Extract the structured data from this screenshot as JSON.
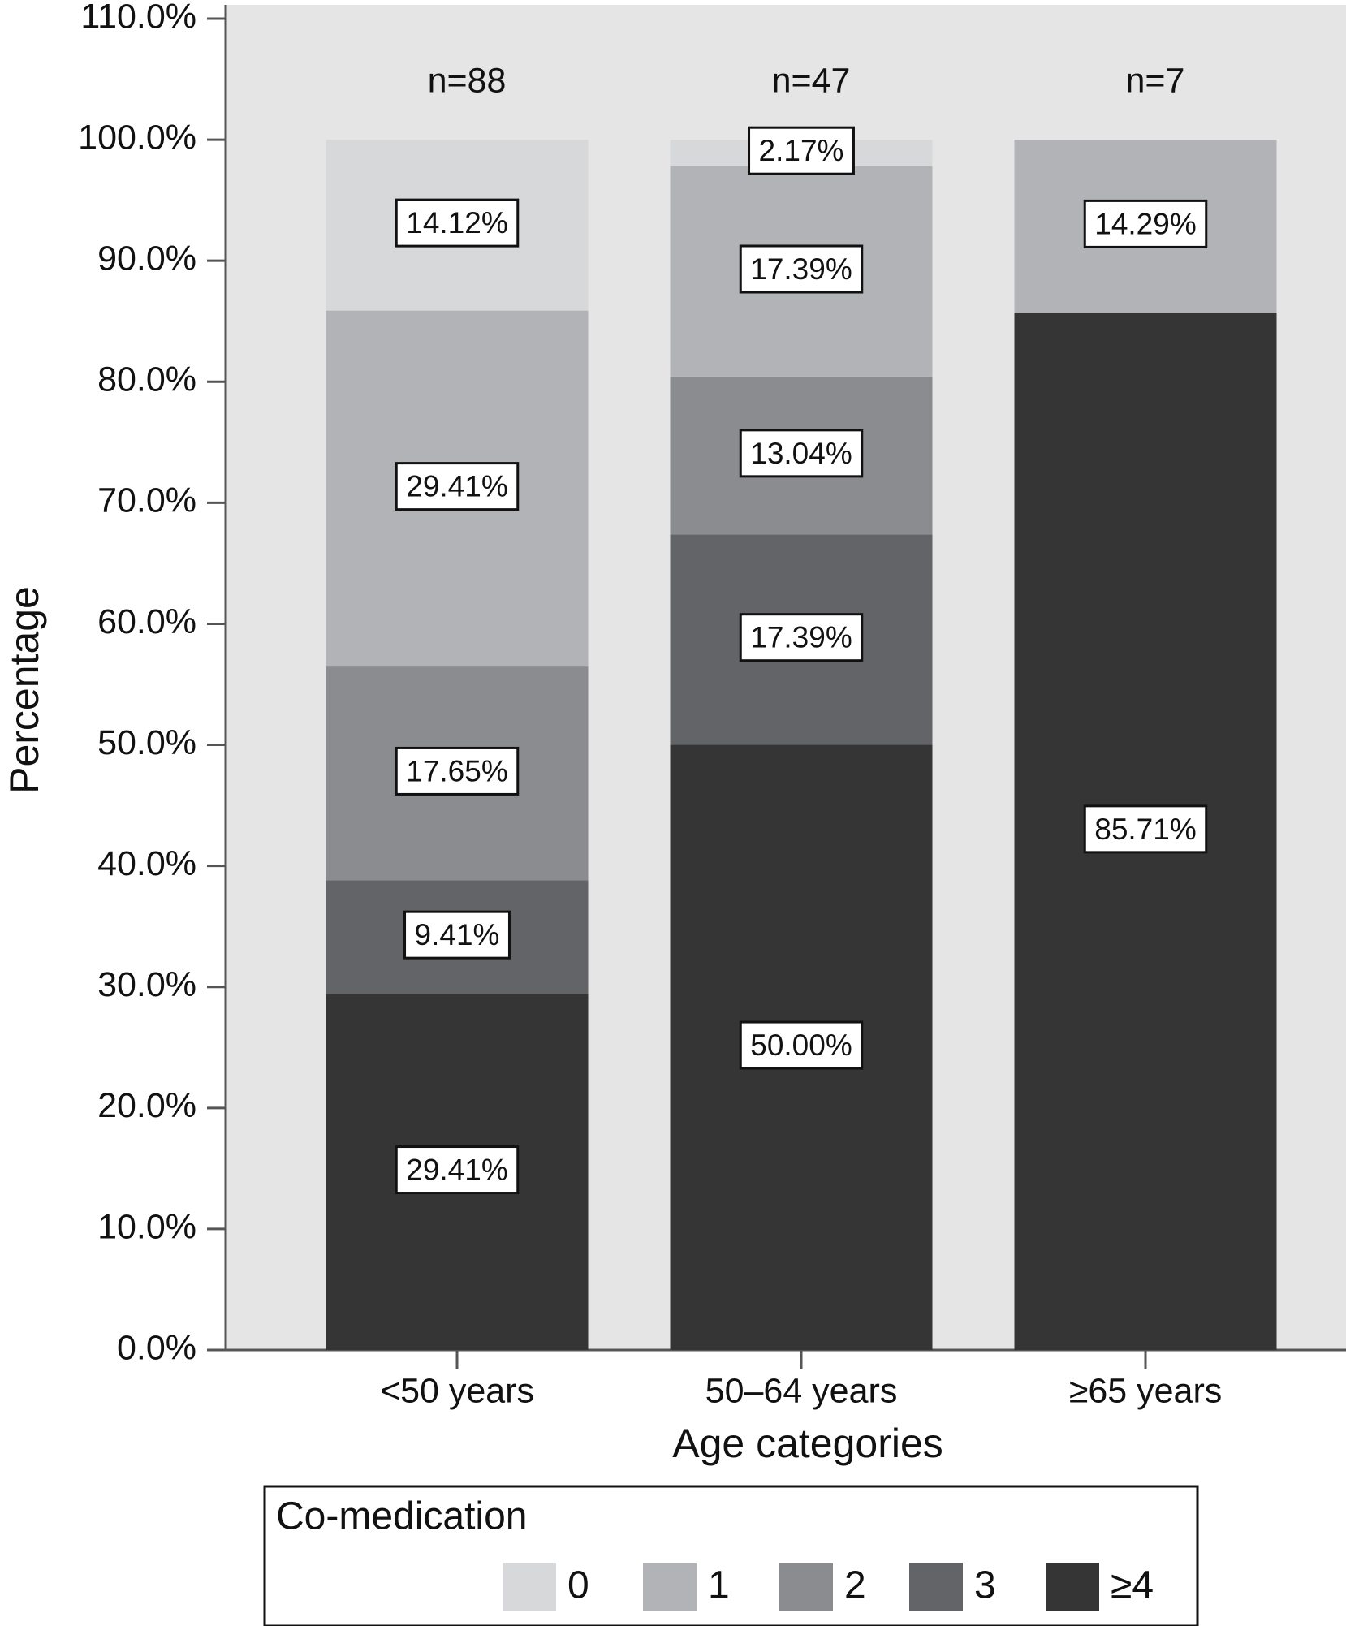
{
  "chart_data": {
    "type": "stacked-bar",
    "y_label": "Percentage",
    "x_label": "Age categories",
    "categories": [
      "<50 years",
      "50–64 years",
      "≥65 years"
    ],
    "annotations": [
      "n=88",
      "n=47",
      "n=7"
    ],
    "legend_title": "Co-medication",
    "series": [
      {
        "name": "0",
        "color": "#d7d8da",
        "values": [
          14.12,
          2.17,
          null
        ],
        "value_labels": [
          "14.12%",
          "2.17%",
          null
        ]
      },
      {
        "name": "1",
        "color": "#b2b3b6",
        "values": [
          29.41,
          17.39,
          14.29
        ],
        "value_labels": [
          "29.41%",
          "17.39%",
          "14.29%"
        ]
      },
      {
        "name": "2",
        "color": "#8b8c8f",
        "values": [
          17.65,
          13.04,
          null
        ],
        "value_labels": [
          "17.65%",
          "13.04%",
          null
        ]
      },
      {
        "name": "3",
        "color": "#636467",
        "values": [
          9.41,
          17.39,
          null
        ],
        "value_labels": [
          "9.41%",
          "17.39%",
          null
        ]
      },
      {
        "name": "≥4",
        "color": "#353535",
        "values": [
          29.41,
          50.0,
          85.71
        ],
        "value_labels": [
          "29.41%",
          "50.00%",
          "85.71%"
        ]
      }
    ],
    "ylim": [
      0,
      110
    ],
    "yticks": [
      {
        "value": 0,
        "label": "0.0%"
      },
      {
        "value": 10,
        "label": "10.0%"
      },
      {
        "value": 20,
        "label": "20.0%"
      },
      {
        "value": 30,
        "label": "30.0%"
      },
      {
        "value": 40,
        "label": "40.0%"
      },
      {
        "value": 50,
        "label": "50.0%"
      },
      {
        "value": 60,
        "label": "60.0%"
      },
      {
        "value": 70,
        "label": "70.0%"
      },
      {
        "value": 80,
        "label": "80.0%"
      },
      {
        "value": 90,
        "label": "90.0%"
      },
      {
        "value": 100,
        "label": "100.0%"
      },
      {
        "value": 110,
        "label": "110.0%"
      }
    ],
    "plot_background": "#e5e5e6"
  }
}
